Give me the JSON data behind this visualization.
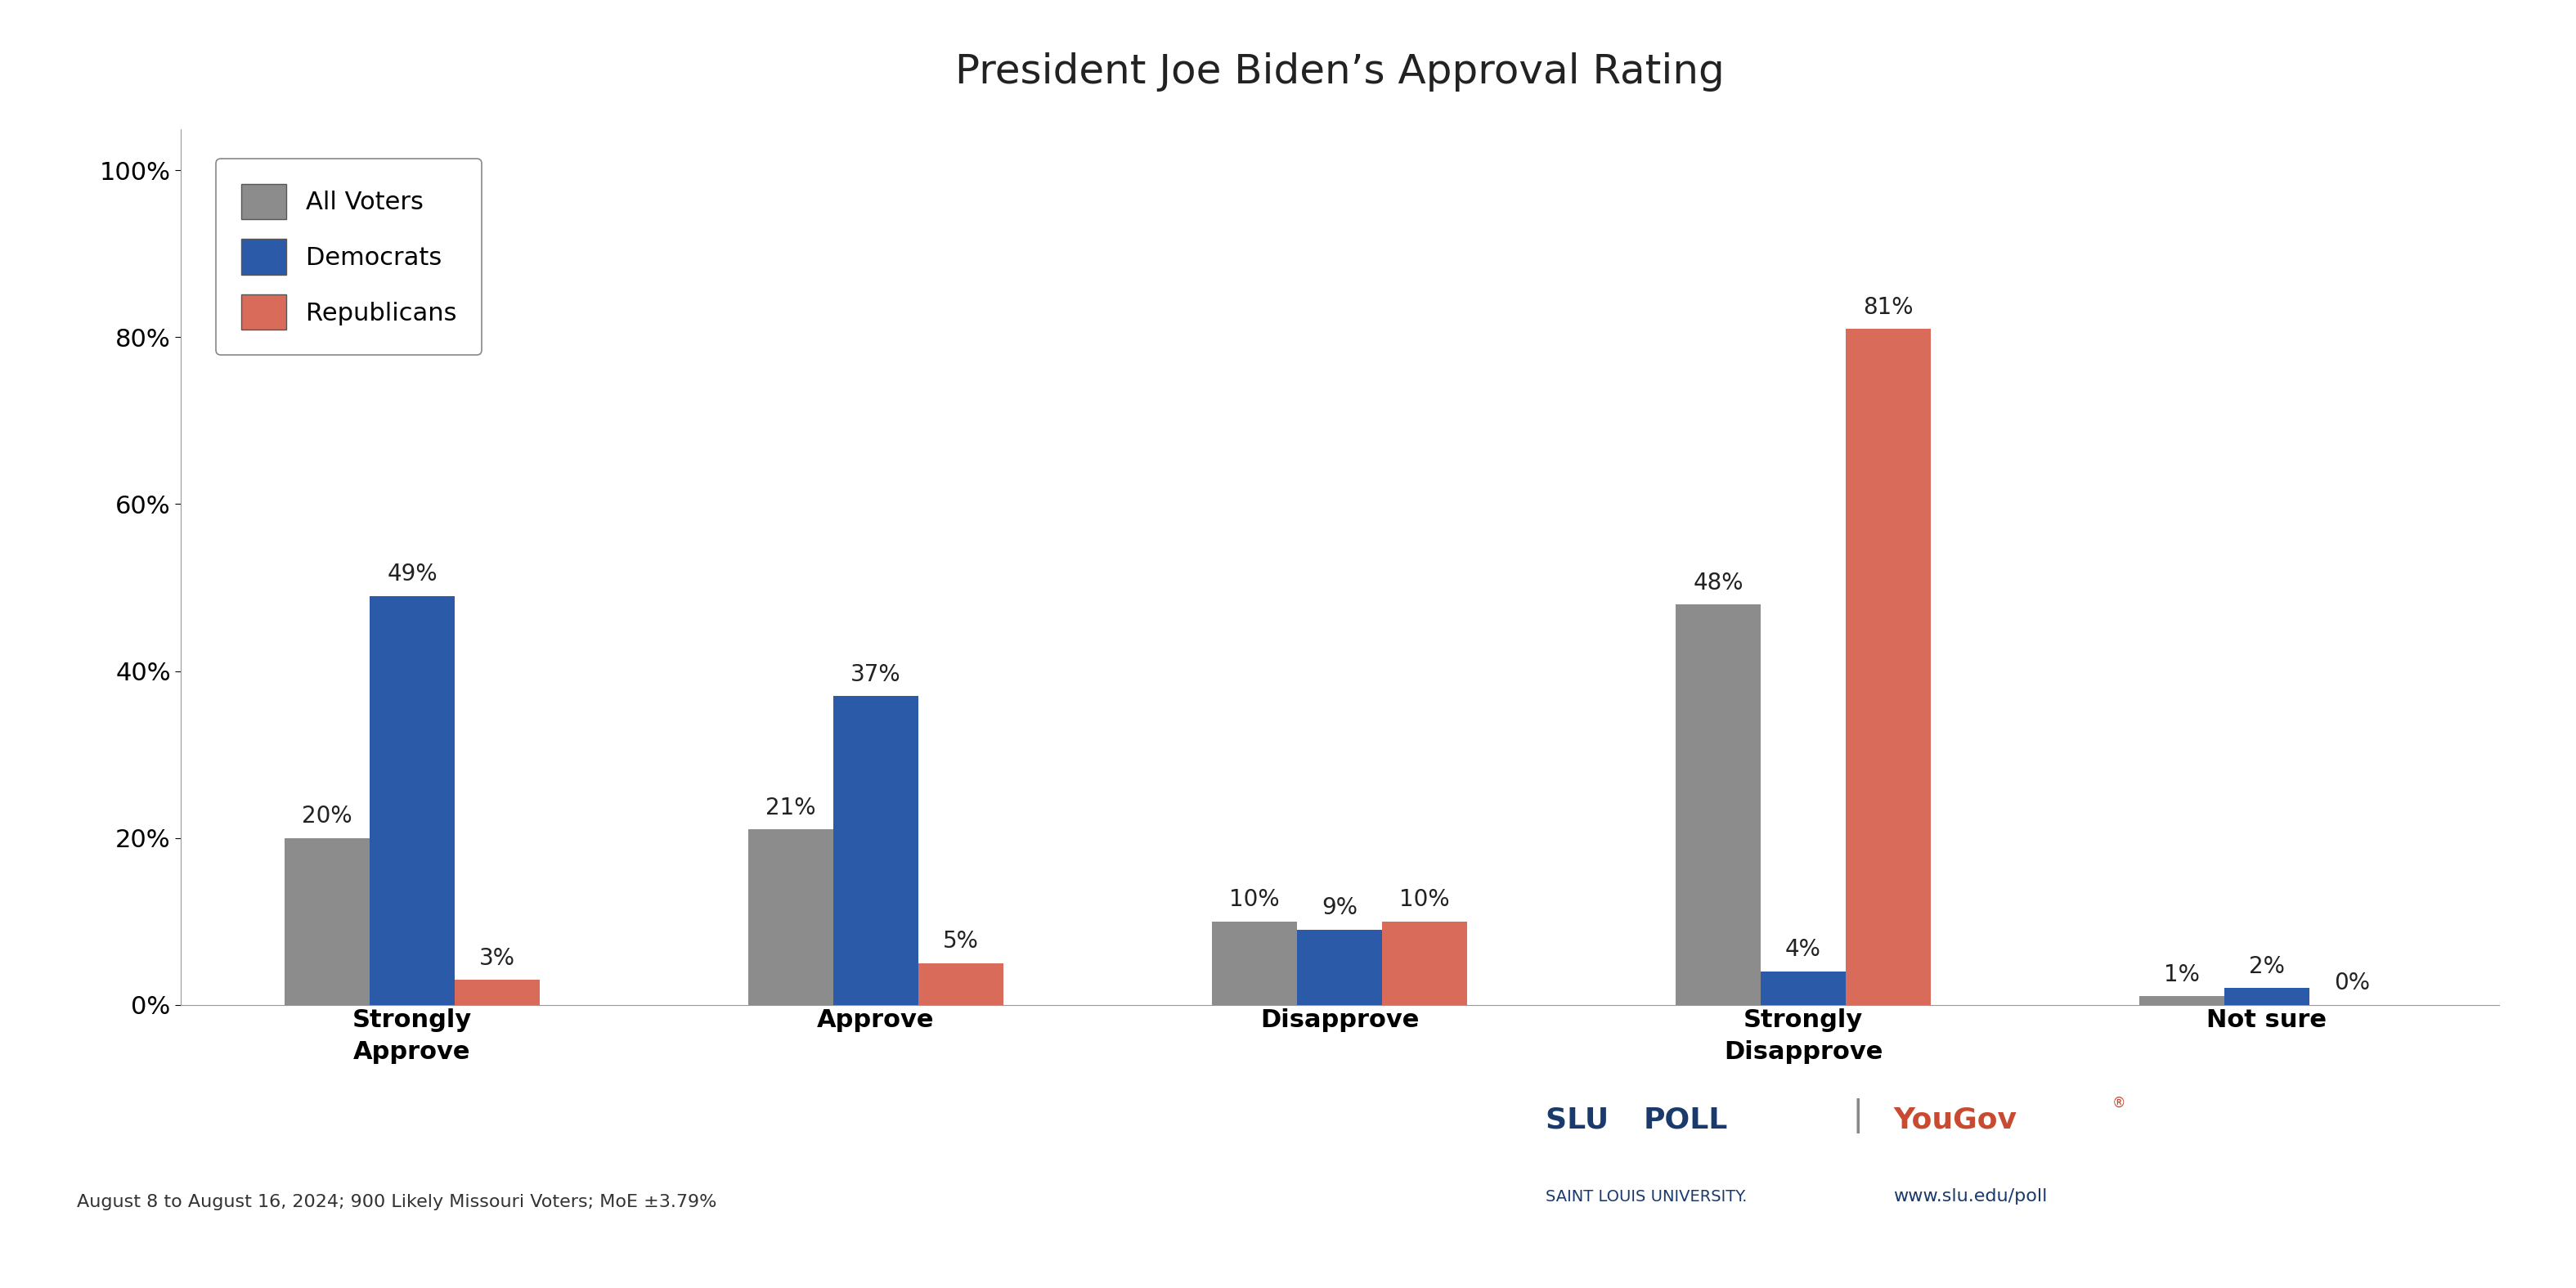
{
  "title": "President Joe Biden’s Approval Rating",
  "categories": [
    "Strongly\nApprove",
    "Approve",
    "Disapprove",
    "Strongly\nDisapprove",
    "Not sure"
  ],
  "all_voters": [
    20,
    21,
    10,
    48,
    1
  ],
  "democrats": [
    49,
    37,
    9,
    4,
    2
  ],
  "republicans": [
    3,
    5,
    10,
    81,
    0
  ],
  "colors": {
    "all_voters": "#8C8C8C",
    "democrats": "#2B5BA8",
    "republicans": "#D96B5A"
  },
  "legend_labels": [
    "All Voters",
    "Democrats",
    "Republicans"
  ],
  "ylim": [
    0,
    105
  ],
  "yticks": [
    0,
    20,
    40,
    60,
    80,
    100
  ],
  "ytick_labels": [
    "0%",
    "20%",
    "40%",
    "60%",
    "80%",
    "100%"
  ],
  "footnote": "August 8 to August 16, 2024; 900 Likely Missouri Voters; MoE ±3.79%",
  "background_color": "#FFFFFF",
  "bar_width": 0.22,
  "title_fontsize": 36,
  "label_fontsize": 22,
  "tick_fontsize": 22,
  "legend_fontsize": 22,
  "annotation_fontsize": 20,
  "footnote_fontsize": 16,
  "slu_fontsize": 26,
  "yougov_fontsize": 26,
  "saint_louis_fontsize": 14,
  "url_fontsize": 16
}
